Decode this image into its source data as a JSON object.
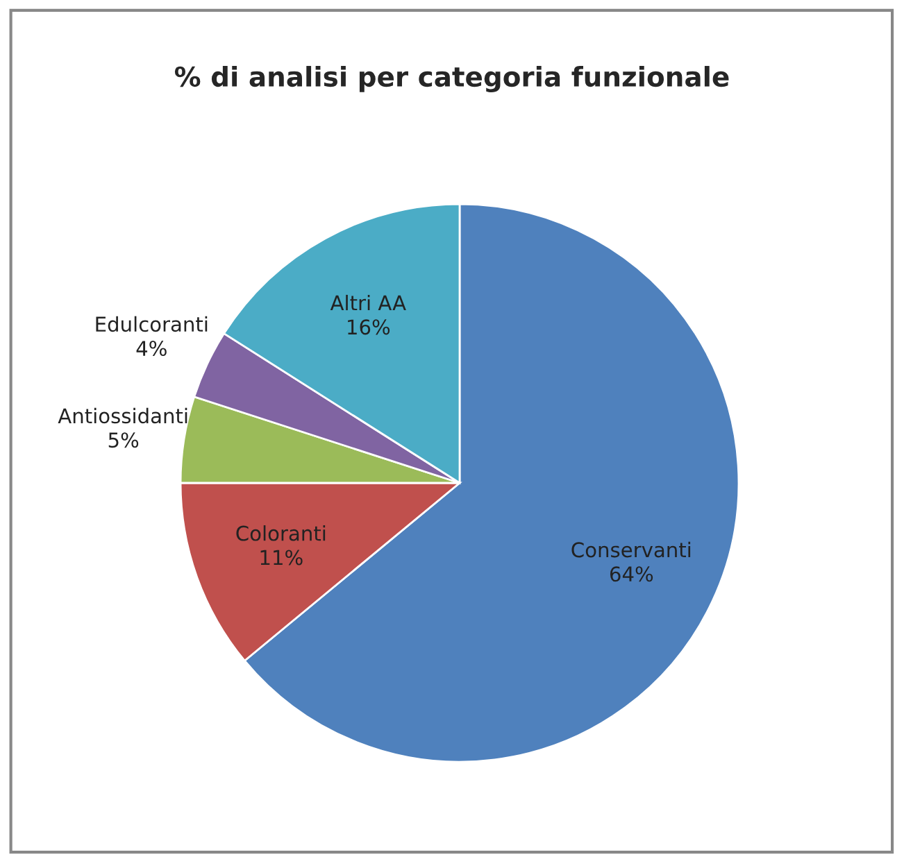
{
  "chart_data": {
    "type": "pie",
    "title": "% di analisi per categoria funzionale",
    "categories": [
      "Conservanti",
      "Coloranti",
      "Antiossidanti",
      "Edulcoranti",
      "Altri AA"
    ],
    "values": [
      64,
      11,
      5,
      4,
      16
    ],
    "colors": [
      "#4f81bd",
      "#c0504d",
      "#9bbb59",
      "#8064a2",
      "#4bacc6"
    ],
    "value_labels": [
      "64%",
      "11%",
      "5%",
      "4%",
      "16%"
    ],
    "legend": false
  }
}
